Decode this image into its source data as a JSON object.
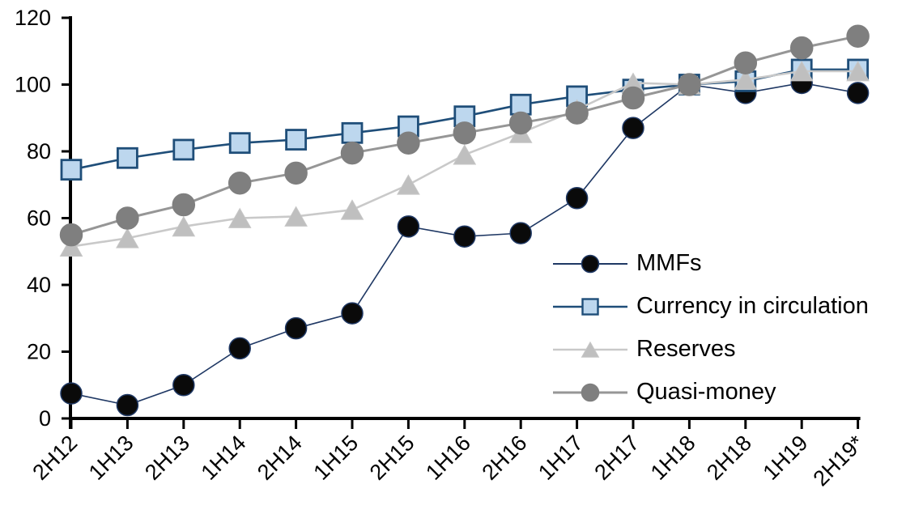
{
  "chart_data": {
    "type": "line",
    "title": "",
    "xlabel": "",
    "ylabel": "",
    "categories": [
      "2H12",
      "1H13",
      "2H13",
      "1H14",
      "2H14",
      "1H15",
      "2H15",
      "1H16",
      "2H16",
      "1H17",
      "2H17",
      "1H18",
      "2H18",
      "1H19",
      "2H19*"
    ],
    "series": [
      {
        "name": "MMFs",
        "marker": "circle",
        "marker_fill": "#0a0a0a",
        "marker_stroke": "#1f3864",
        "line_color": "#1f3864",
        "line_width": 1.6,
        "marker_size": 26,
        "values": [
          7.5,
          4,
          10,
          21,
          27,
          31.5,
          57.5,
          54.5,
          55.5,
          66,
          87,
          100,
          97.5,
          100.5,
          97.5
        ]
      },
      {
        "name": "Currency in circulation",
        "marker": "square",
        "marker_fill": "#bdd7ee",
        "marker_stroke": "#1f4e79",
        "line_color": "#1f4e79",
        "line_width": 2.6,
        "marker_size": 24,
        "values": [
          74.5,
          78,
          80.5,
          82.5,
          83.5,
          85.5,
          87.5,
          90.5,
          94,
          96.5,
          98.5,
          100,
          101,
          104.5,
          104.5
        ]
      },
      {
        "name": "Reserves",
        "marker": "triangle",
        "marker_fill": "#bfbfbf",
        "marker_stroke": "#c6c6c6",
        "line_color": "#c9c9c9",
        "line_width": 2.6,
        "marker_size": 27,
        "values": [
          51.5,
          54,
          57.5,
          60,
          60.5,
          62.5,
          70,
          79,
          85.5,
          92.5,
          100.5,
          100,
          101.5,
          104,
          104
        ]
      },
      {
        "name": "Quasi-money",
        "marker": "circle",
        "marker_fill": "#7f7f7f",
        "marker_stroke": "#7f7f7f",
        "line_color": "#969696",
        "line_width": 3,
        "marker_size": 27,
        "values": [
          55,
          60,
          64,
          70.5,
          73.5,
          79.5,
          82.5,
          85.5,
          88.5,
          91.5,
          96,
          100,
          106.5,
          111,
          114.5
        ]
      }
    ],
    "ylim": [
      0,
      120
    ],
    "yticks": [
      0,
      20,
      40,
      60,
      80,
      100,
      120
    ],
    "grid": false,
    "axis_color": "#000000",
    "legend_position": "center-right"
  }
}
